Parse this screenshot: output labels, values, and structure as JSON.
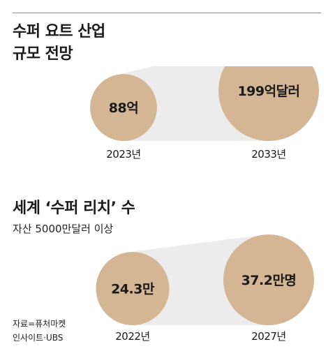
{
  "colors": {
    "circle": "#d4b594",
    "connector": "#ececec",
    "text": "#1a1a1a",
    "rule": "#8c8c8c"
  },
  "titles": {
    "chart1_line1": "수퍼 요트 산업",
    "chart1_line2": "규모 전망",
    "chart2": "세계 ‘수퍼 리치’ 수",
    "chart2_sub": "자산 5000만달러 이상"
  },
  "source": {
    "line1": "자료=퓨처마켓",
    "line2": "인사이트·UBS"
  },
  "chart_data": [
    {
      "type": "bubble",
      "title": "수퍼 요트 산업 규모 전망",
      "categories": [
        "2023년",
        "2033년"
      ],
      "values": [
        88,
        199
      ],
      "value_labels": [
        "88억",
        "199억달러"
      ]
    },
    {
      "type": "bubble",
      "title": "세계 ‘수퍼 리치’ 수",
      "subtitle": "자산 5000만달러 이상",
      "categories": [
        "2022년",
        "2027년"
      ],
      "values": [
        24.3,
        37.2
      ],
      "value_labels": [
        "24.3만",
        "37.2만명"
      ]
    }
  ]
}
